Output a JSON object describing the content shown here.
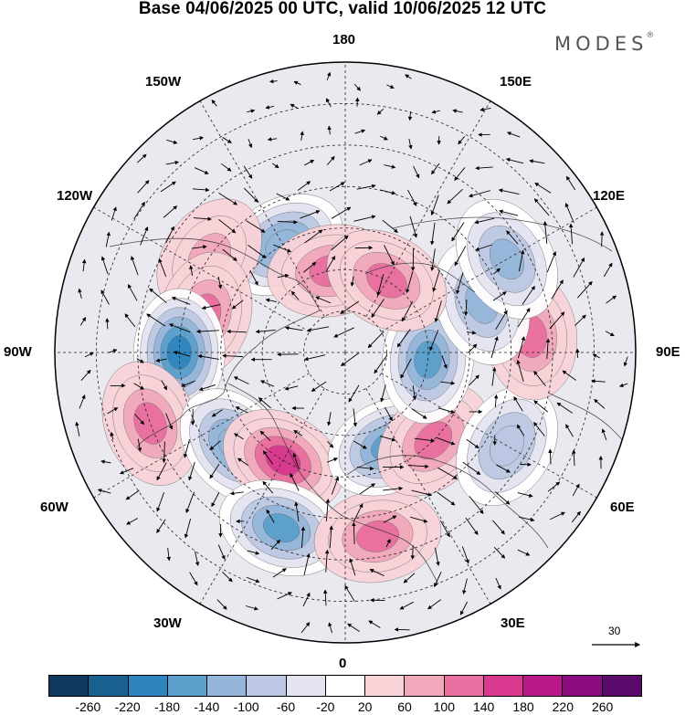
{
  "title": "Base 04/06/2025 00 UTC, valid 10/06/2025 12 UTC",
  "brand": {
    "name": "MODES",
    "mark": "®"
  },
  "longitude_labels": [
    "180",
    "150W",
    "150E",
    "120W",
    "120E",
    "90W",
    "90E",
    "60W",
    "60E",
    "30W",
    "30E",
    "0"
  ],
  "reference_vector": {
    "label": "30"
  },
  "colorbar": {
    "colors": [
      "#0f3a5e",
      "#18608f",
      "#2e85be",
      "#5c9fcc",
      "#94b6da",
      "#bcc8e3",
      "#e4e3f1",
      "#ffffff",
      "#f8d3d8",
      "#f1a8bb",
      "#e86f9f",
      "#d8388e",
      "#b81888",
      "#8a0c7f",
      "#5a0a6a"
    ],
    "tick_labels": [
      "-260",
      "-220",
      "-180",
      "-140",
      "-100",
      "-60",
      "-20",
      "20",
      "60",
      "100",
      "140",
      "180",
      "220",
      "260"
    ]
  },
  "anomaly_centers": [
    {
      "lon_lat_hint": "150W-60N",
      "sign": "negative",
      "strength": -140
    },
    {
      "lon_lat_hint": "170W-70N",
      "sign": "positive",
      "strength": 110
    },
    {
      "lon_lat_hint": "125W-50N",
      "sign": "positive",
      "strength": 90
    },
    {
      "lon_lat_hint": "105W-55N",
      "sign": "positive",
      "strength": 100
    },
    {
      "lon_lat_hint": "90W-50N",
      "sign": "negative",
      "strength": -190
    },
    {
      "lon_lat_hint": "70W-40N",
      "sign": "positive",
      "strength": 110
    },
    {
      "lon_lat_hint": "50W-55N",
      "sign": "negative",
      "strength": -140
    },
    {
      "lon_lat_hint": "30W-60N",
      "sign": "positive",
      "strength": 150
    },
    {
      "lon_lat_hint": "20W-45N",
      "sign": "negative",
      "strength": -170
    },
    {
      "lon_lat_hint": "10E-45N",
      "sign": "positive",
      "strength": 130
    },
    {
      "lon_lat_hint": "25E-65N",
      "sign": "negative",
      "strength": -170
    },
    {
      "lon_lat_hint": "45E-60N",
      "sign": "positive",
      "strength": 130
    },
    {
      "lon_lat_hint": "60E-45N",
      "sign": "negative",
      "strength": -100
    },
    {
      "lon_lat_hint": "85E-70N",
      "sign": "negative",
      "strength": -160
    },
    {
      "lon_lat_hint": "95E-45N",
      "sign": "positive",
      "strength": 130
    },
    {
      "lon_lat_hint": "110E-55N",
      "sign": "negative",
      "strength": -130
    },
    {
      "lon_lat_hint": "120E-45N",
      "sign": "negative",
      "strength": -120
    },
    {
      "lon_lat_hint": "150E-70N",
      "sign": "positive",
      "strength": 100
    }
  ]
}
